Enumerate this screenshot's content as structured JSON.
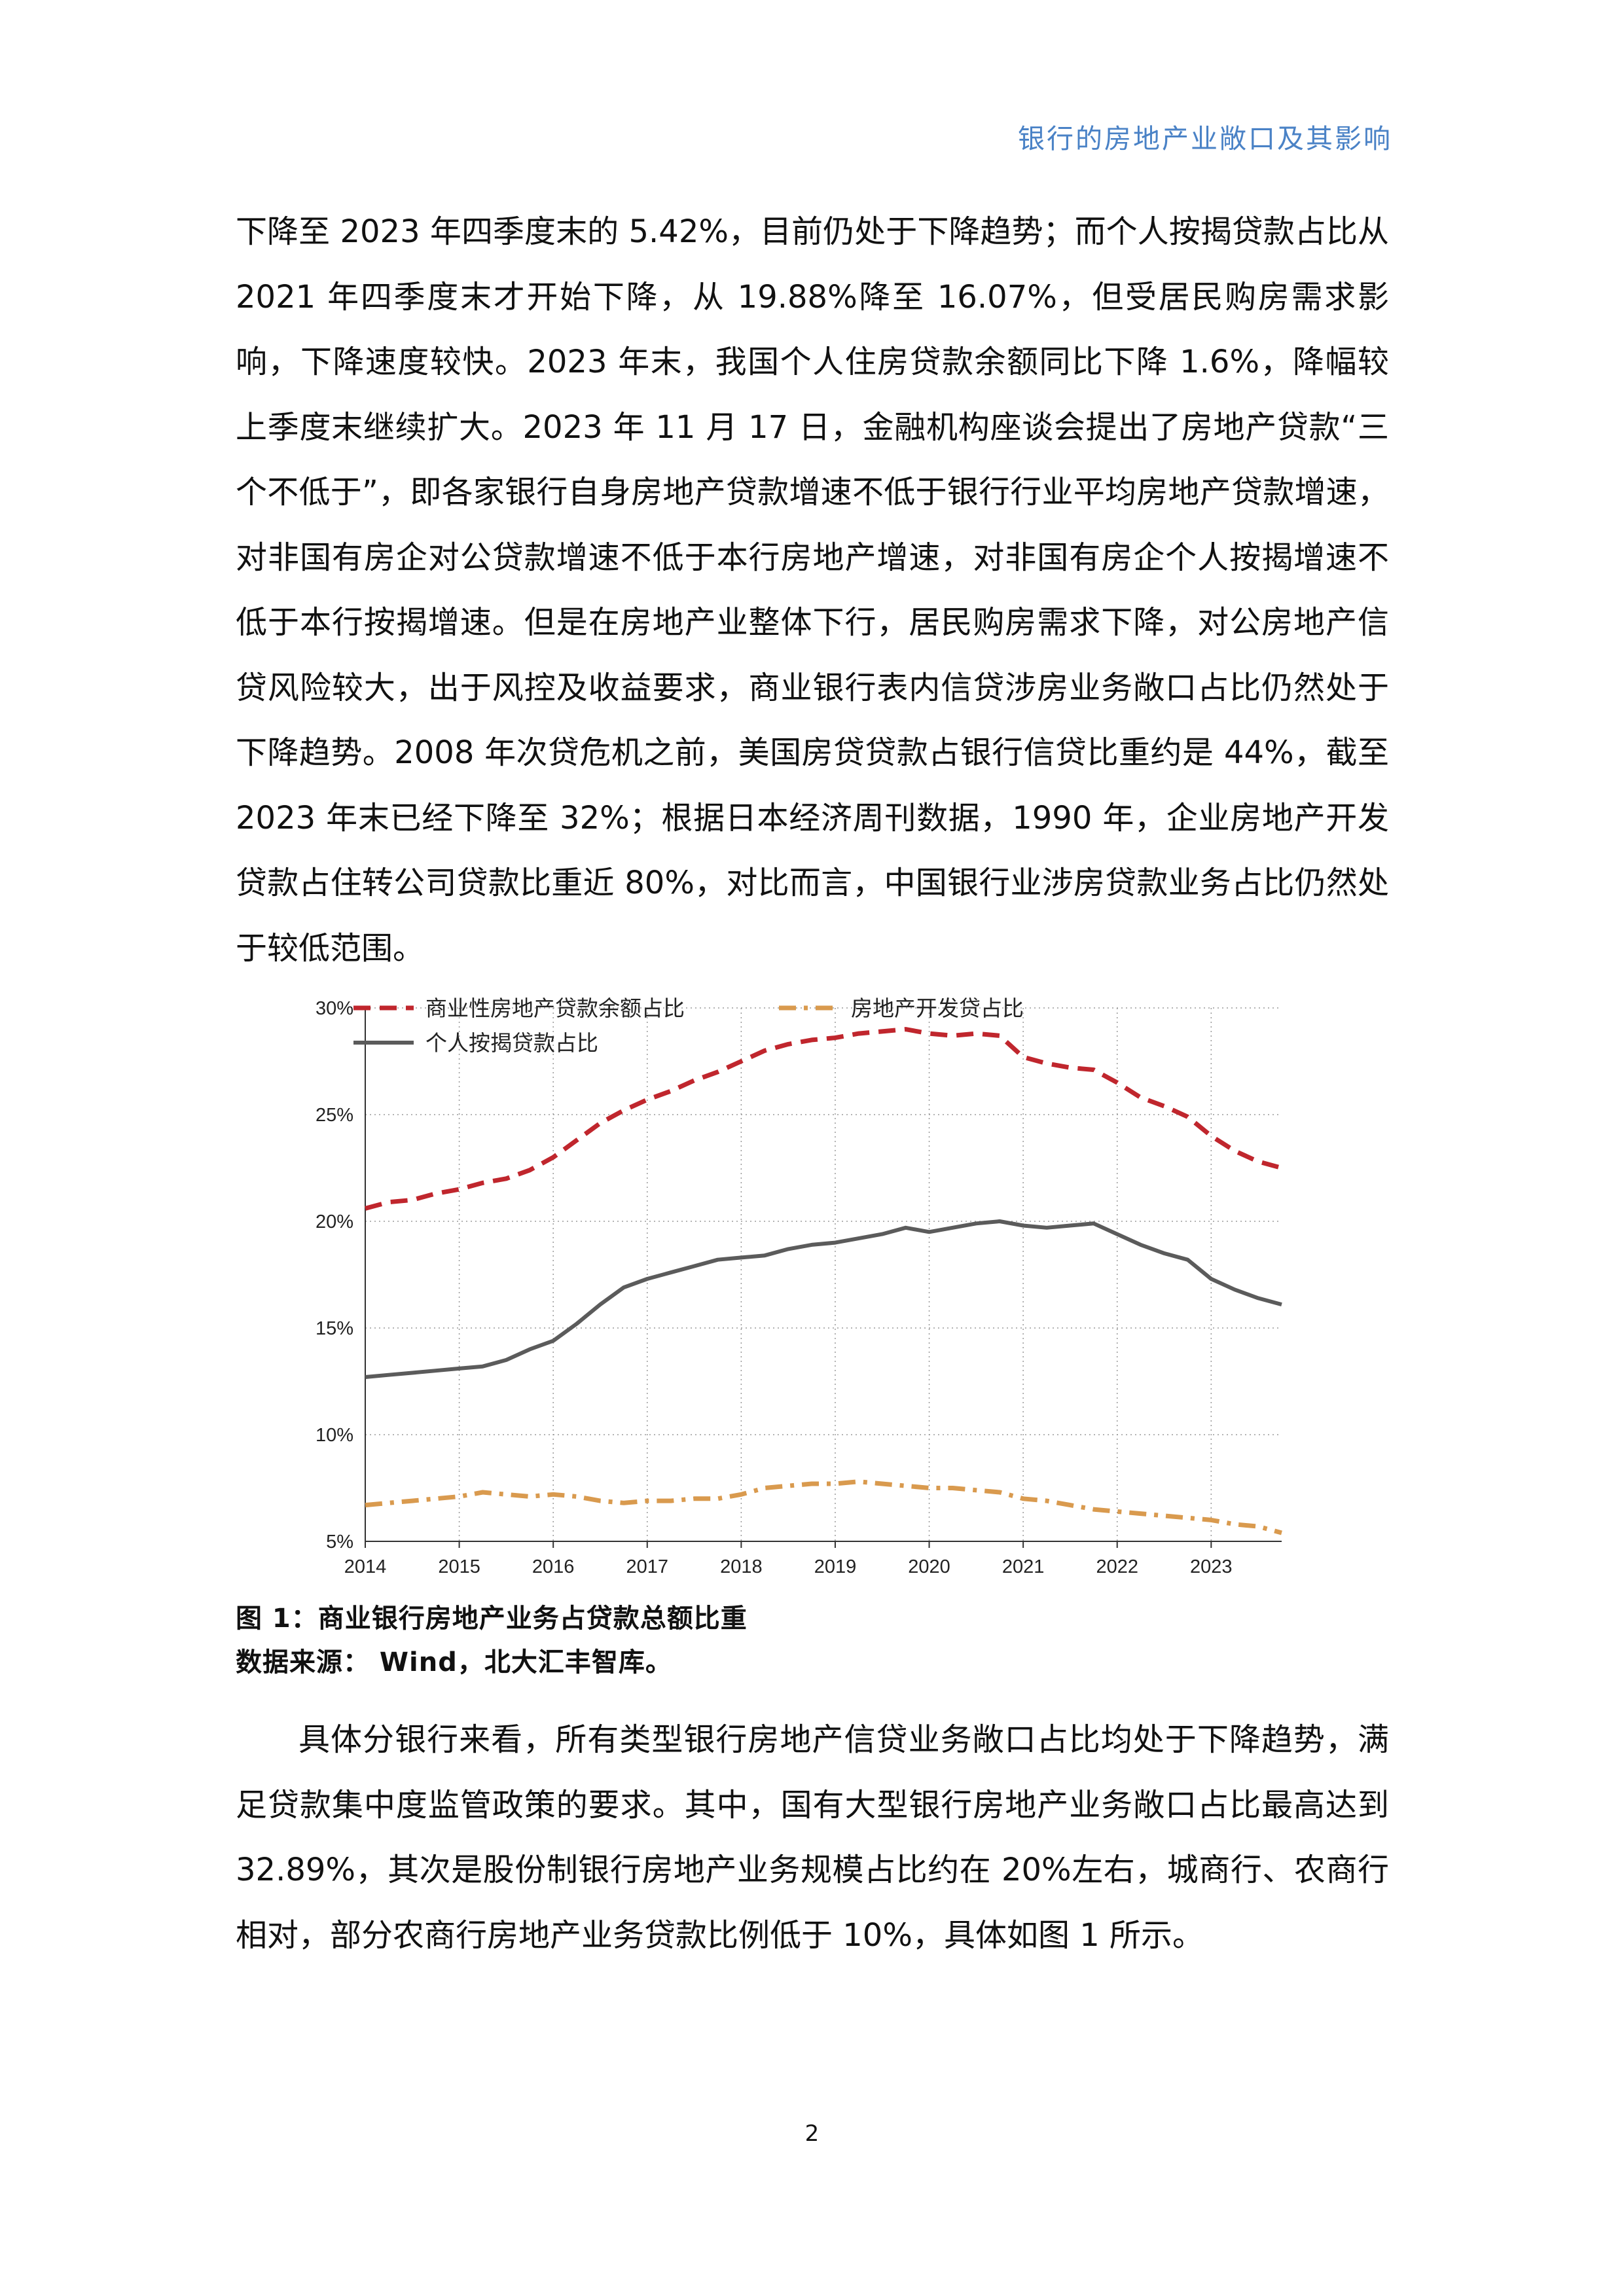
{
  "header": {
    "title": "银行的房地产业敞口及其影响"
  },
  "paragraphs": [
    "下降至 2023 年四季度末的 5.42%，目前仍处于下降趋势；而个人按揭贷款占比从 2021 年四季度末才开始下降，从 19.88%降至 16.07%，但受居民购房需求影响，下降速度较快。2023 年末，我国个人住房贷款余额同比下降 1.6%，降幅较上季度末继续扩大。2023 年 11 月 17 日，金融机构座谈会提出了房地产贷款“三个不低于”，即各家银行自身房地产贷款增速不低于银行行业平均房地产贷款增速，对非国有房企对公贷款增速不低于本行房地产增速，对非国有房企个人按揭增速不低于本行按揭增速。但是在房地产业整体下行，居民购房需求下降，对公房地产信贷风险较大，出于风控及收益要求，商业银行表内信贷涉房业务敞口占比仍然处于下降趋势。2008 年次贷危机之前，美国房贷贷款占银行信贷比重约是 44%，截至 2023 年末已经下降至 32%；根据日本经济周刊数据，1990 年，企业房地产开发贷款占住转公司贷款比重近 80%，对比而言，中国银行业涉房贷款业务占比仍然处于较低范围。",
    "具体分银行来看，所有类型银行房地产信贷业务敞口占比均处于下降趋势，满足贷款集中度监管政策的要求。其中，国有大型银行房地产业务敞口占比最高达到 32.89%，其次是股份制银行房地产业务规模占比约在 20%左右，城商行、农商行相对，部分农商行房地产业务贷款比例低于 10%，具体如图 1 所示。"
  ],
  "figure": {
    "caption": "图 1：商业银行房地产业务占贷款总额比重",
    "source": "数据来源： Wind，北大汇丰智库。"
  },
  "page_number": "2",
  "chart_data": {
    "type": "line",
    "title": "",
    "xlabel": "",
    "ylabel": "",
    "x_range": [
      2014.0,
      2023.75
    ],
    "ylim": [
      5,
      30
    ],
    "x_tick_labels": [
      "2014",
      "2015",
      "2016",
      "2017",
      "2018",
      "2019",
      "2020",
      "2021",
      "2022",
      "2023"
    ],
    "y_tick_labels": [
      "30%",
      "25%",
      "20%",
      "15%",
      "10%",
      "5%"
    ],
    "y_ticks": [
      30,
      25,
      20,
      15,
      10,
      5
    ],
    "grid": true,
    "legend_position": "top-left",
    "x": [
      2014.0,
      2014.25,
      2014.5,
      2014.75,
      2015.0,
      2015.25,
      2015.5,
      2015.75,
      2016.0,
      2016.25,
      2016.5,
      2016.75,
      2017.0,
      2017.25,
      2017.5,
      2017.75,
      2018.0,
      2018.25,
      2018.5,
      2018.75,
      2019.0,
      2019.25,
      2019.5,
      2019.75,
      2020.0,
      2020.25,
      2020.5,
      2020.75,
      2021.0,
      2021.25,
      2021.5,
      2021.75,
      2022.0,
      2022.25,
      2022.5,
      2022.75,
      2023.0,
      2023.25,
      2023.5,
      2023.75
    ],
    "series": [
      {
        "name": "商业性房地产贷款余额占比",
        "color": "#c0262d",
        "style": "dashed",
        "values": [
          20.6,
          20.9,
          21.0,
          21.3,
          21.5,
          21.8,
          22.0,
          22.4,
          23.0,
          23.8,
          24.6,
          25.2,
          25.7,
          26.1,
          26.6,
          27.0,
          27.5,
          28.0,
          28.3,
          28.5,
          28.6,
          28.8,
          28.9,
          29.0,
          28.8,
          28.7,
          28.8,
          28.7,
          27.7,
          27.4,
          27.2,
          27.1,
          26.5,
          25.8,
          25.4,
          24.9,
          24.0,
          23.3,
          22.8,
          22.5
        ]
      },
      {
        "name": "房地产开发贷占比",
        "color": "#d99a4e",
        "style": "dashdot",
        "values": [
          6.7,
          6.8,
          6.9,
          7.0,
          7.1,
          7.3,
          7.2,
          7.1,
          7.2,
          7.1,
          6.9,
          6.8,
          6.9,
          6.9,
          7.0,
          7.0,
          7.2,
          7.5,
          7.6,
          7.7,
          7.7,
          7.8,
          7.7,
          7.6,
          7.5,
          7.5,
          7.4,
          7.3,
          7.0,
          6.9,
          6.7,
          6.5,
          6.4,
          6.3,
          6.2,
          6.1,
          6.0,
          5.8,
          5.7,
          5.4
        ]
      },
      {
        "name": "个人按揭贷款占比",
        "color": "#5b5b5b",
        "style": "solid",
        "values": [
          12.7,
          12.8,
          12.9,
          13.0,
          13.1,
          13.2,
          13.5,
          14.0,
          14.4,
          15.2,
          16.1,
          16.9,
          17.3,
          17.6,
          17.9,
          18.2,
          18.3,
          18.4,
          18.7,
          18.9,
          19.0,
          19.2,
          19.4,
          19.7,
          19.5,
          19.7,
          19.9,
          20.0,
          19.8,
          19.7,
          19.8,
          19.9,
          19.4,
          18.9,
          18.5,
          18.2,
          17.3,
          16.8,
          16.4,
          16.1
        ]
      }
    ]
  }
}
